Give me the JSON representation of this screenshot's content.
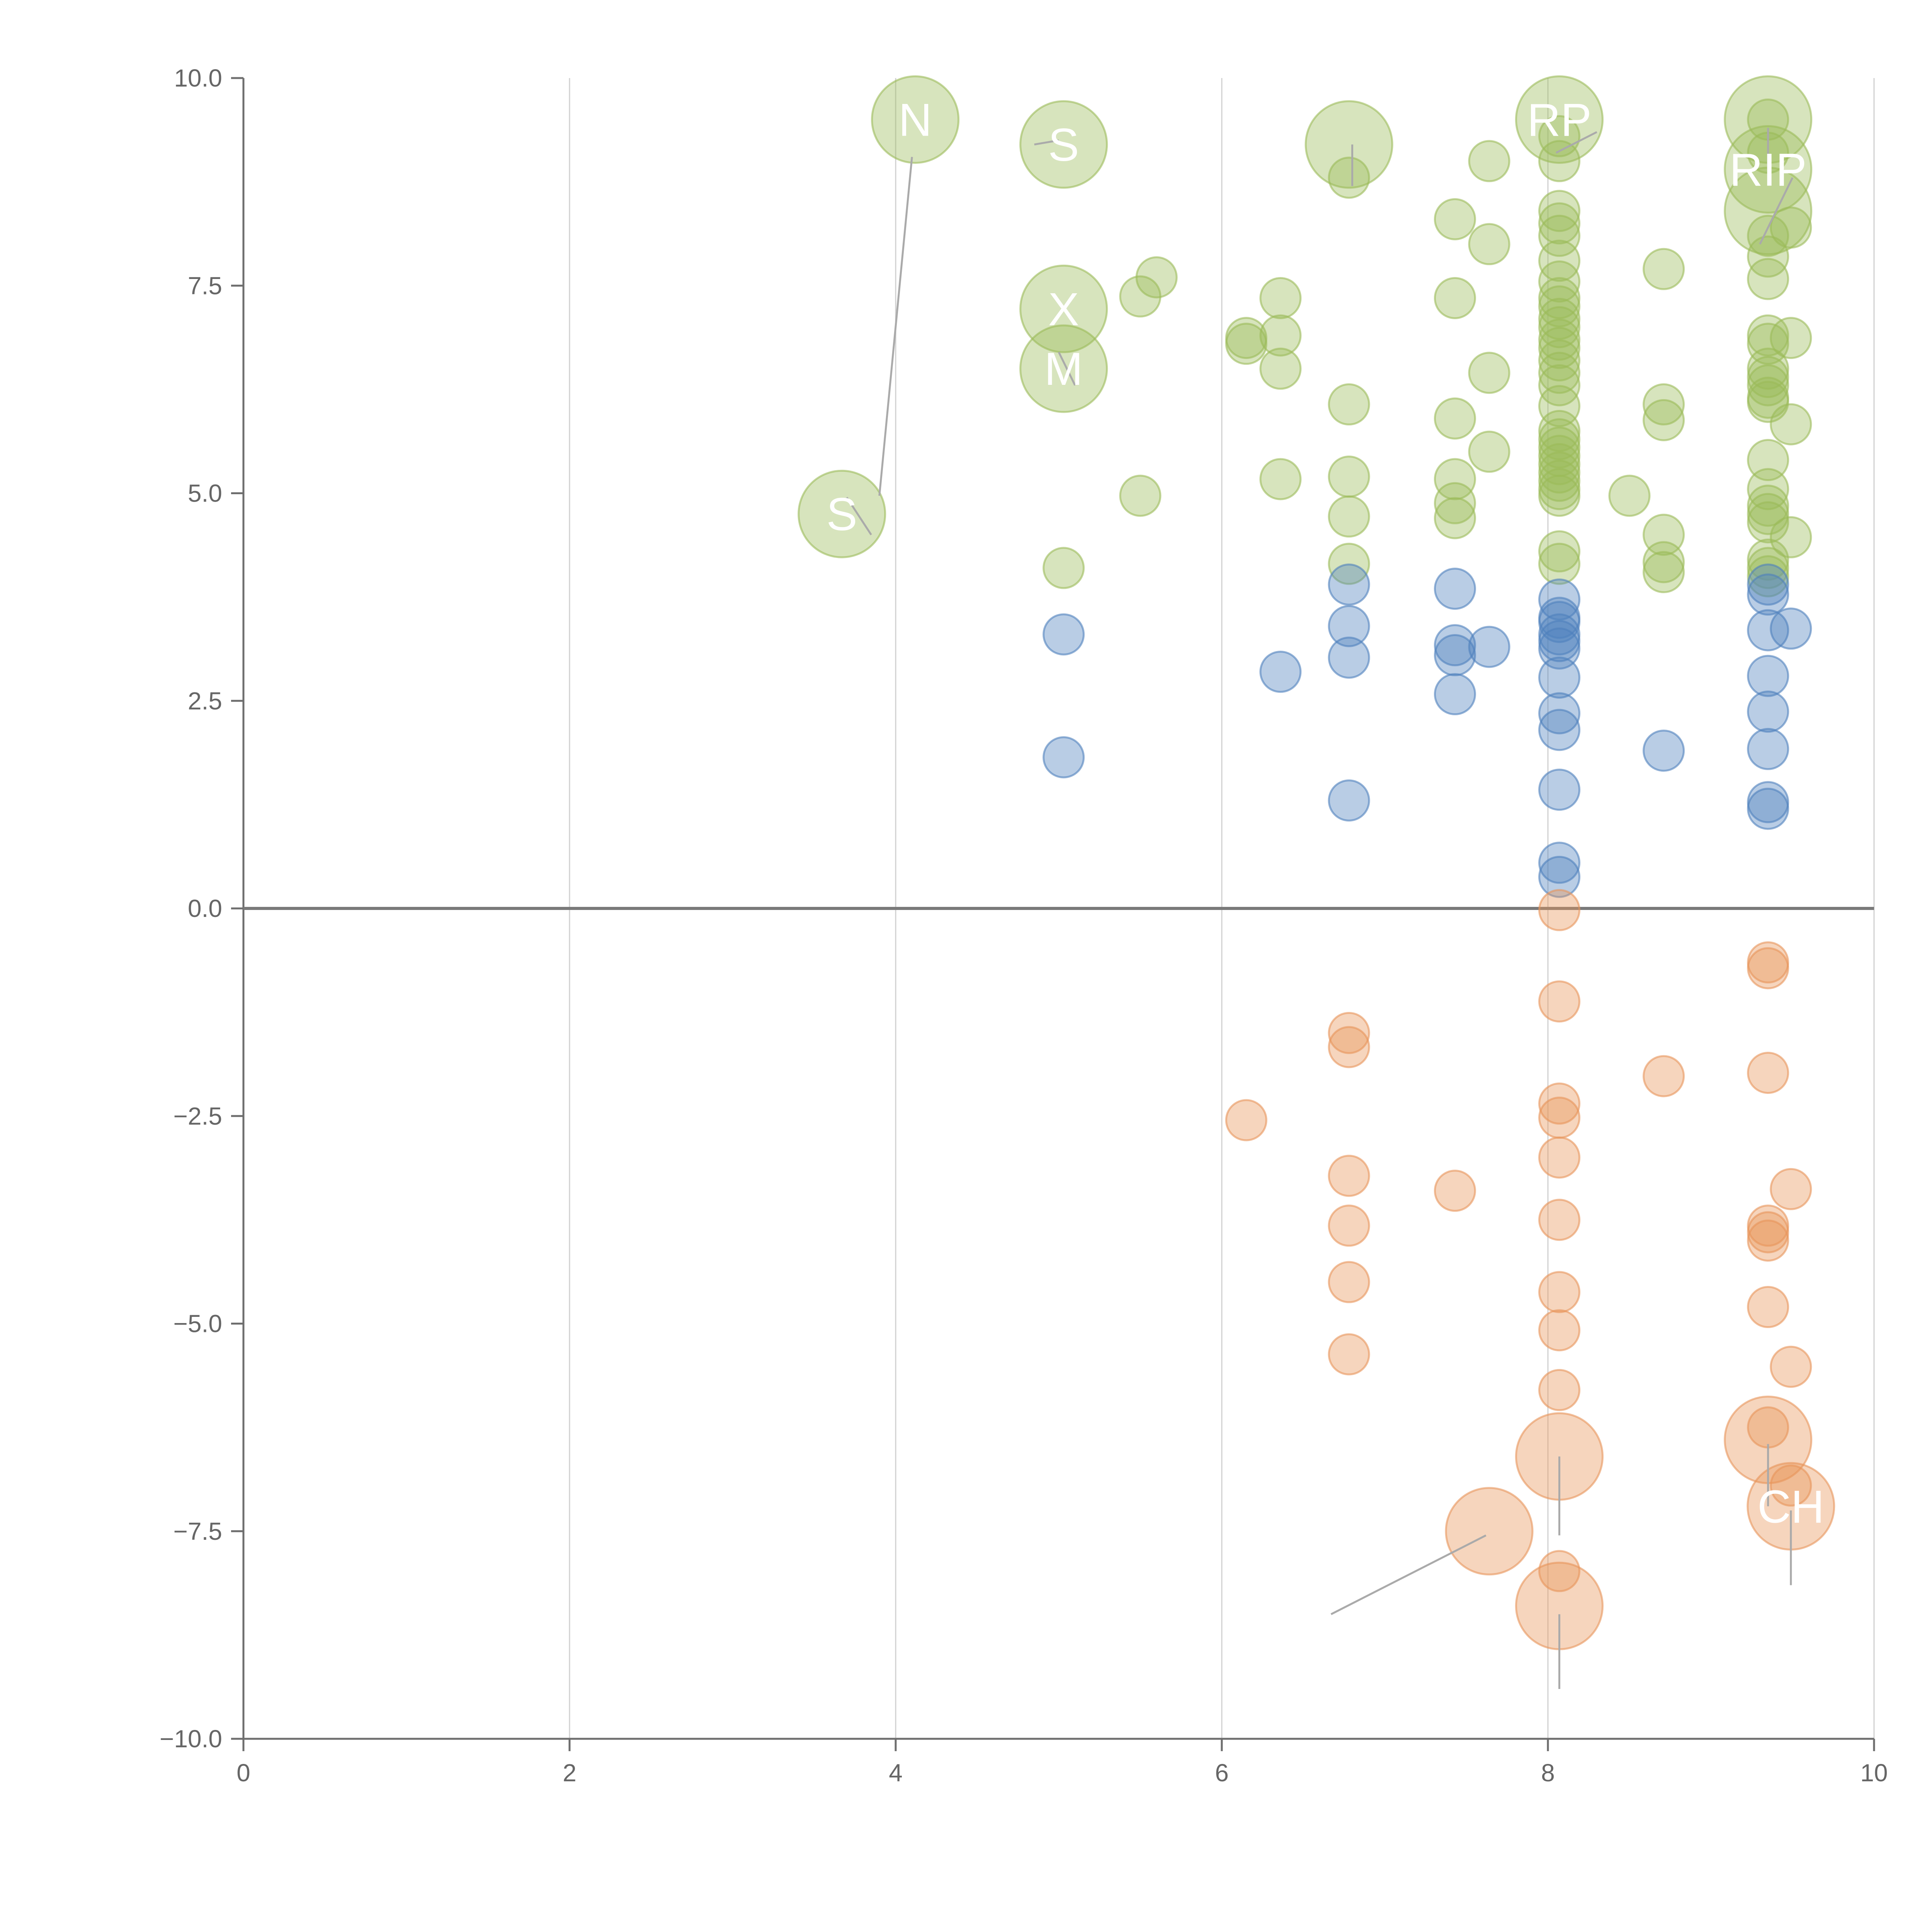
{
  "chart_data": {
    "type": "scatter",
    "title": "",
    "xlabel": "",
    "ylabel": "",
    "xlim": [
      0,
      10
    ],
    "ylim": [
      -10,
      10
    ],
    "x_ticks": [
      0,
      2,
      4,
      6,
      8,
      10
    ],
    "x_tick_labels": [
      "0",
      "2",
      "4",
      "6",
      "8",
      "10"
    ],
    "y_ticks": [
      10,
      7.5,
      5,
      2.5,
      0,
      -2.5,
      -5,
      -7.5,
      -10
    ],
    "y_tick_labels": [
      "10.0",
      "7.5",
      "5.0",
      "2.5",
      "0.0",
      "−2.5",
      "−5.0",
      "−7.5",
      "−10.0"
    ],
    "grid": "vertical",
    "legend": "none",
    "colors": {
      "positive_high": "#9bbb59",
      "positive_low": "#4f81bd",
      "negative": "#e8955a",
      "axis": "#6e6e6e",
      "grid": "#d0d0d0",
      "zero_line": "#7a7a7a",
      "leader": "#aaaaaa",
      "label": "#ffffff"
    },
    "series": [
      {
        "name": "positive_high",
        "points": [
          [
            5.5,
            4.97
          ],
          [
            5.6,
            7.6
          ],
          [
            5.5,
            7.37
          ],
          [
            5.03,
            4.1
          ],
          [
            6.15,
            6.87
          ],
          [
            6.15,
            6.8
          ],
          [
            6.36,
            6.9
          ],
          [
            6.36,
            7.35
          ],
          [
            6.36,
            6.5
          ],
          [
            6.36,
            5.17
          ],
          [
            6.78,
            8.8
          ],
          [
            6.78,
            6.07
          ],
          [
            6.78,
            5.2
          ],
          [
            6.78,
            4.72
          ],
          [
            6.78,
            4.15
          ],
          [
            7.43,
            8.3
          ],
          [
            7.43,
            7.35
          ],
          [
            7.43,
            5.9
          ],
          [
            7.43,
            5.17
          ],
          [
            7.43,
            4.88
          ],
          [
            7.43,
            4.7
          ],
          [
            7.64,
            9.0
          ],
          [
            7.64,
            8.0
          ],
          [
            7.64,
            6.45
          ],
          [
            7.64,
            5.5
          ],
          [
            8.07,
            9.3
          ],
          [
            8.07,
            9.0
          ],
          [
            8.07,
            8.4
          ],
          [
            8.07,
            8.25
          ],
          [
            8.07,
            8.1
          ],
          [
            8.07,
            7.8
          ],
          [
            8.07,
            7.55
          ],
          [
            8.07,
            7.35
          ],
          [
            8.07,
            7.25
          ],
          [
            8.07,
            7.1
          ],
          [
            8.07,
            7.0
          ],
          [
            8.07,
            6.85
          ],
          [
            8.07,
            6.75
          ],
          [
            8.07,
            6.6
          ],
          [
            8.07,
            6.45
          ],
          [
            8.07,
            6.3
          ],
          [
            8.07,
            6.05
          ],
          [
            8.07,
            5.75
          ],
          [
            8.07,
            5.65
          ],
          [
            8.07,
            5.55
          ],
          [
            8.07,
            5.45
          ],
          [
            8.07,
            5.35
          ],
          [
            8.07,
            5.25
          ],
          [
            8.07,
            5.15
          ],
          [
            8.07,
            5.05
          ],
          [
            8.07,
            4.97
          ],
          [
            8.07,
            4.3
          ],
          [
            8.07,
            4.15
          ],
          [
            8.5,
            4.97
          ],
          [
            8.71,
            7.7
          ],
          [
            8.71,
            6.07
          ],
          [
            8.71,
            5.88
          ],
          [
            8.71,
            4.5
          ],
          [
            8.71,
            4.17
          ],
          [
            8.71,
            4.05
          ],
          [
            9.35,
            9.5
          ],
          [
            9.35,
            9.1
          ],
          [
            9.35,
            8.1
          ],
          [
            9.35,
            7.85
          ],
          [
            9.35,
            7.58
          ],
          [
            9.35,
            6.9
          ],
          [
            9.35,
            6.8
          ],
          [
            9.35,
            6.5
          ],
          [
            9.35,
            6.4
          ],
          [
            9.35,
            6.3
          ],
          [
            9.35,
            6.15
          ],
          [
            9.35,
            6.1
          ],
          [
            9.35,
            5.4
          ],
          [
            9.35,
            5.05
          ],
          [
            9.35,
            4.85
          ],
          [
            9.35,
            4.75
          ],
          [
            9.35,
            4.65
          ],
          [
            9.35,
            4.2
          ],
          [
            9.35,
            4.1
          ],
          [
            9.35,
            4.0
          ],
          [
            9.49,
            8.2
          ],
          [
            9.49,
            6.87
          ],
          [
            9.49,
            5.83
          ],
          [
            9.49,
            4.47
          ]
        ]
      },
      {
        "name": "positive_low",
        "points": [
          [
            5.03,
            3.3
          ],
          [
            5.03,
            1.82
          ],
          [
            6.36,
            2.85
          ],
          [
            6.78,
            3.9
          ],
          [
            6.78,
            3.4
          ],
          [
            6.78,
            3.02
          ],
          [
            6.78,
            1.3
          ],
          [
            7.43,
            3.85
          ],
          [
            7.43,
            3.17
          ],
          [
            7.43,
            3.05
          ],
          [
            7.43,
            2.58
          ],
          [
            7.64,
            3.15
          ],
          [
            8.07,
            3.72
          ],
          [
            8.07,
            3.5
          ],
          [
            8.07,
            3.45
          ],
          [
            8.07,
            3.3
          ],
          [
            8.07,
            3.22
          ],
          [
            8.07,
            3.13
          ],
          [
            8.07,
            2.78
          ],
          [
            8.07,
            2.35
          ],
          [
            8.07,
            2.15
          ],
          [
            8.07,
            1.43
          ],
          [
            8.07,
            0.55
          ],
          [
            8.07,
            0.38
          ],
          [
            8.71,
            1.9
          ],
          [
            9.35,
            3.9
          ],
          [
            9.35,
            3.78
          ],
          [
            9.35,
            3.35
          ],
          [
            9.35,
            2.8
          ],
          [
            9.35,
            2.37
          ],
          [
            9.35,
            1.92
          ],
          [
            9.35,
            1.28
          ],
          [
            9.35,
            1.2
          ],
          [
            9.49,
            3.37
          ]
        ]
      },
      {
        "name": "negative",
        "points": [
          [
            6.15,
            -2.55
          ],
          [
            6.78,
            -1.5
          ],
          [
            6.78,
            -1.67
          ],
          [
            6.78,
            -3.22
          ],
          [
            6.78,
            -3.82
          ],
          [
            6.78,
            -4.5
          ],
          [
            6.78,
            -5.37
          ],
          [
            7.43,
            -3.4
          ],
          [
            8.07,
            -0.02
          ],
          [
            8.07,
            -1.12
          ],
          [
            8.07,
            -2.35
          ],
          [
            8.07,
            -2.52
          ],
          [
            8.07,
            -3.0
          ],
          [
            8.07,
            -3.75
          ],
          [
            8.07,
            -4.62
          ],
          [
            8.07,
            -5.08
          ],
          [
            8.07,
            -5.8
          ],
          [
            8.07,
            -7.98
          ],
          [
            8.71,
            -2.02
          ],
          [
            9.35,
            -0.65
          ],
          [
            9.35,
            -0.72
          ],
          [
            9.35,
            -1.98
          ],
          [
            9.35,
            -3.82
          ],
          [
            9.35,
            -3.9
          ],
          [
            9.35,
            -4.0
          ],
          [
            9.35,
            -4.8
          ],
          [
            9.35,
            -6.25
          ],
          [
            9.49,
            -3.38
          ],
          [
            9.49,
            -5.52
          ],
          [
            9.49,
            -6.95
          ]
        ]
      }
    ],
    "labeled_bubbles": [
      {
        "series": "positive_high",
        "x": 4.12,
        "y": 9.5,
        "size": "large",
        "label": "N"
      },
      {
        "series": "positive_high",
        "x": 5.03,
        "y": 9.2,
        "size": "large",
        "label": "S"
      },
      {
        "series": "positive_high",
        "x": 6.78,
        "y": 9.2,
        "size": "large",
        "label": ""
      },
      {
        "series": "positive_high",
        "x": 8.07,
        "y": 9.5,
        "size": "large",
        "label": "RP"
      },
      {
        "series": "positive_high",
        "x": 9.35,
        "y": 9.5,
        "size": "large",
        "label": ""
      },
      {
        "series": "positive_high",
        "x": 9.35,
        "y": 8.9,
        "size": "large",
        "label": "RIP"
      },
      {
        "series": "positive_high",
        "x": 9.35,
        "y": 8.4,
        "size": "large",
        "label": ""
      },
      {
        "series": "positive_high",
        "x": 5.03,
        "y": 7.22,
        "size": "large",
        "label": "X"
      },
      {
        "series": "positive_high",
        "x": 5.03,
        "y": 6.5,
        "size": "large",
        "label": "M"
      },
      {
        "series": "positive_high",
        "x": 3.67,
        "y": 4.75,
        "size": "large",
        "label": "S"
      },
      {
        "series": "negative",
        "x": 7.64,
        "y": -7.5,
        "size": "large",
        "label": ""
      },
      {
        "series": "negative",
        "x": 8.07,
        "y": -6.6,
        "size": "large",
        "label": ""
      },
      {
        "series": "negative",
        "x": 8.07,
        "y": -8.4,
        "size": "large",
        "label": ""
      },
      {
        "series": "negative",
        "x": 9.35,
        "y": -6.4,
        "size": "large",
        "label": ""
      },
      {
        "series": "negative",
        "x": 9.49,
        "y": -7.2,
        "size": "large",
        "label": "CH"
      }
    ],
    "leader_lines": [
      [
        [
          3.9,
          4.97
        ],
        [
          4.1,
          9.05
        ]
      ],
      [
        [
          4.85,
          9.2
        ],
        [
          5.0,
          9.25
        ]
      ],
      [
        [
          6.8,
          9.2
        ],
        [
          6.8,
          8.7
        ]
      ],
      [
        [
          8.05,
          9.1
        ],
        [
          8.3,
          9.35
        ]
      ],
      [
        [
          9.35,
          9.4
        ],
        [
          9.35,
          8.9
        ]
      ],
      [
        [
          9.3,
          8.0
        ],
        [
          9.5,
          8.8
        ]
      ],
      [
        [
          5.0,
          6.7
        ],
        [
          5.1,
          6.3
        ]
      ],
      [
        [
          3.7,
          4.95
        ],
        [
          3.85,
          4.5
        ]
      ],
      [
        [
          6.67,
          -8.5
        ],
        [
          7.62,
          -7.55
        ]
      ],
      [
        [
          8.07,
          -6.6
        ],
        [
          8.07,
          -7.55
        ]
      ],
      [
        [
          8.07,
          -8.5
        ],
        [
          8.07,
          -9.4
        ]
      ],
      [
        [
          9.35,
          -6.45
        ],
        [
          9.35,
          -7.2
        ]
      ],
      [
        [
          9.49,
          -7.25
        ],
        [
          9.49,
          -8.15
        ]
      ]
    ]
  }
}
